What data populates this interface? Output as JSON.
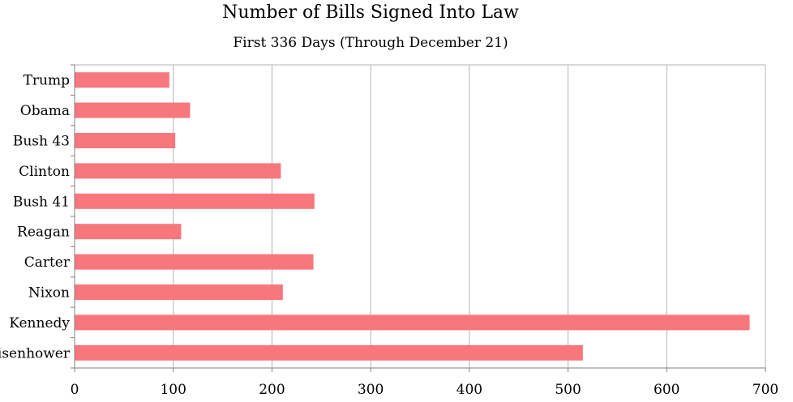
{
  "chart_data": {
    "type": "bar",
    "orientation": "horizontal",
    "title": "Number of Bills Signed Into Law",
    "subtitle": "First 336 Days (Through December 21)",
    "categories": [
      "Trump",
      "Obama",
      "Bush 43",
      "Clinton",
      "Bush 41",
      "Reagan",
      "Carter",
      "Nixon",
      "Kennedy",
      "Eisenhower"
    ],
    "values": [
      96,
      117,
      102,
      209,
      243,
      108,
      242,
      211,
      684,
      515
    ],
    "xlim": [
      0,
      700
    ],
    "x_ticks": [
      0,
      100,
      200,
      300,
      400,
      500,
      600,
      700
    ],
    "xlabel": "",
    "ylabel": "",
    "grid": "vertical",
    "bar_color": "#f7777c",
    "legend": "none"
  }
}
